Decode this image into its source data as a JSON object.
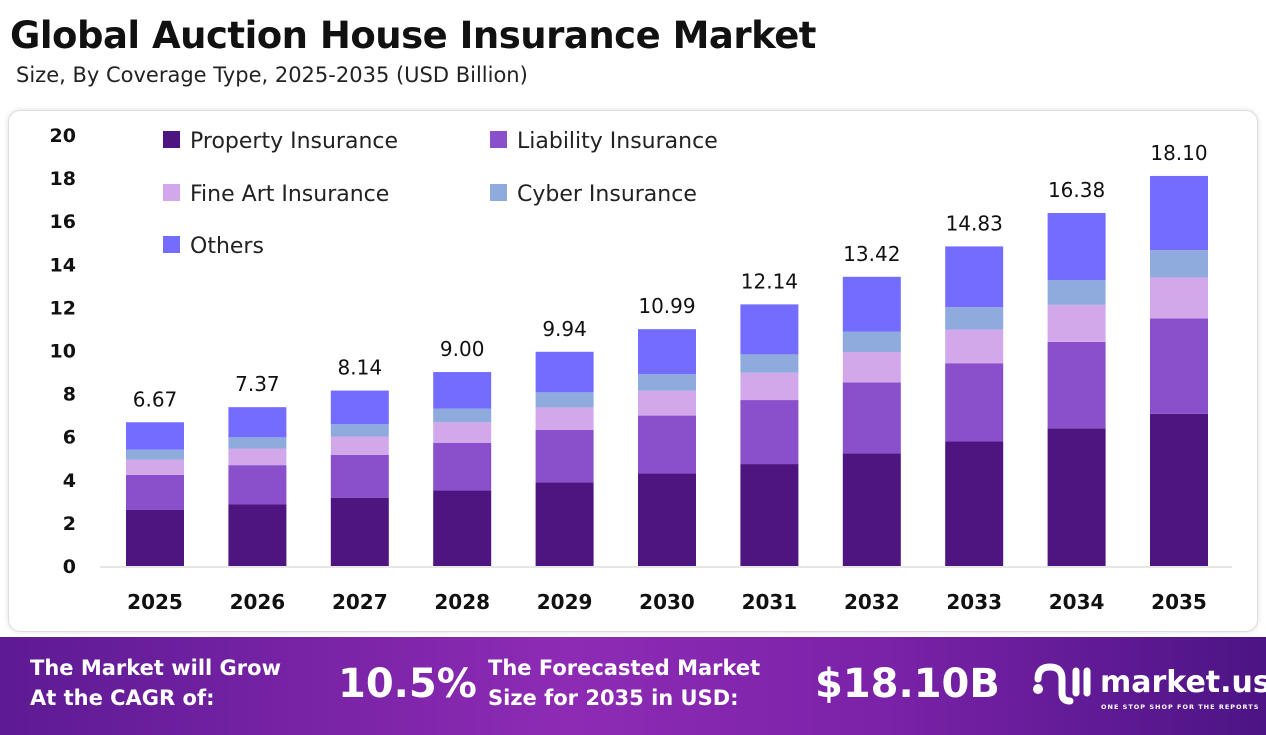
{
  "chart_data": {
    "type": "bar",
    "stacked": true,
    "title": "Global Auction House Insurance Market",
    "subtitle": "Size, By Coverage Type, 2025-2035 (USD Billion)",
    "categories": [
      "2025",
      "2026",
      "2027",
      "2028",
      "2029",
      "2030",
      "2031",
      "2032",
      "2033",
      "2034",
      "2035"
    ],
    "totals": [
      "6.67",
      "7.37",
      "8.14",
      "9.00",
      "9.94",
      "10.99",
      "12.14",
      "13.42",
      "14.83",
      "16.38",
      "18.10"
    ],
    "series": [
      {
        "name": "Property Insurance",
        "color": "#4E1580",
        "values": [
          2.6,
          2.87,
          3.17,
          3.51,
          3.88,
          4.29,
          4.73,
          5.23,
          5.78,
          6.39,
          7.06
        ]
      },
      {
        "name": "Liability Insurance",
        "color": "#8A4FCB",
        "values": [
          1.63,
          1.81,
          1.99,
          2.21,
          2.44,
          2.69,
          2.97,
          3.29,
          3.63,
          4.01,
          4.43
        ]
      },
      {
        "name": "Fine Art Insurance",
        "color": "#D3A8EA",
        "values": [
          0.7,
          0.77,
          0.85,
          0.95,
          1.04,
          1.15,
          1.27,
          1.41,
          1.56,
          1.72,
          1.9
        ]
      },
      {
        "name": "Cyber Insurance",
        "color": "#8FAADC",
        "values": [
          0.47,
          0.52,
          0.57,
          0.63,
          0.7,
          0.77,
          0.85,
          0.94,
          1.04,
          1.15,
          1.27
        ]
      },
      {
        "name": "Others",
        "color": "#746CFE",
        "values": [
          1.27,
          1.4,
          1.56,
          1.7,
          1.88,
          2.09,
          2.32,
          2.55,
          2.82,
          3.11,
          3.44
        ]
      }
    ],
    "ylim": [
      0,
      20
    ],
    "yticks": [
      "0",
      "2",
      "4",
      "6",
      "8",
      "10",
      "12",
      "14",
      "16",
      "18",
      "20"
    ],
    "grid": false,
    "legend": "top-left"
  },
  "banner": {
    "cagr_label": "The Market will Grow At the CAGR of:",
    "cagr_line1": "The Market will Grow",
    "cagr_line2": "At the CAGR of:",
    "cagr_value": "10.5%",
    "forecast_line1": "The Forecasted Market",
    "forecast_line2": "Size for 2035 in USD:",
    "forecast_value": "$18.10B",
    "logo_text": "market.us",
    "logo_tagline": "ONE STOP SHOP FOR THE REPORTS"
  }
}
